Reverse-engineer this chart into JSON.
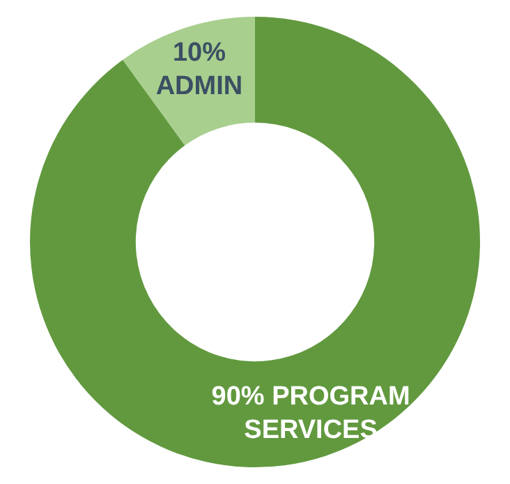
{
  "chart_data": {
    "type": "donut",
    "categories": [
      "PROGRAM SERVICES",
      "ADMIN"
    ],
    "values": [
      90,
      10
    ],
    "value_labels": [
      "90%",
      "10%"
    ],
    "colors": [
      "#62993f",
      "#a8cf8e"
    ],
    "legend": false
  }
}
